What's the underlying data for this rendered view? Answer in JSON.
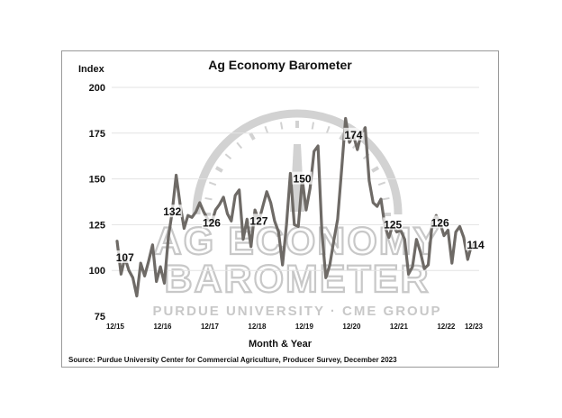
{
  "chart_data": {
    "type": "line",
    "title": "Ag Economy Barometer",
    "ylabel": "Index",
    "xlabel": "Month & Year",
    "ylim": [
      75,
      200
    ],
    "yticks": [
      75,
      100,
      125,
      150,
      175,
      200
    ],
    "xtick_labels": [
      "12/15",
      "12/16",
      "12/17",
      "12/18",
      "12/19",
      "12/20",
      "12/21",
      "12/22",
      "12/23"
    ],
    "grid": true,
    "series": [
      {
        "color": "#6e6a66",
        "values": [
          116,
          98,
          107,
          100,
          96,
          86,
          104,
          97,
          105,
          114,
          94,
          102,
          93,
          118,
          132,
          152,
          136,
          123,
          130,
          129,
          132,
          137,
          132,
          128,
          126,
          133,
          136,
          140,
          131,
          127,
          141,
          144,
          117,
          128,
          113,
          133,
          127,
          135,
          143,
          137,
          127,
          121,
          103,
          125,
          153,
          125,
          124,
          150,
          133,
          145,
          165,
          168,
          121,
          96,
          103,
          116,
          128,
          155,
          183,
          170,
          174,
          166,
          175,
          178,
          149,
          137,
          135,
          139,
          124,
          118,
          125,
          121,
          122,
          117,
          98,
          102,
          117,
          110,
          101,
          103,
          126,
          130,
          126,
          119,
          122,
          104,
          121,
          124,
          118,
          106,
          114,
          114
        ]
      }
    ],
    "annotations": [
      {
        "label": "107",
        "x_index": 2,
        "value": 107
      },
      {
        "label": "132",
        "x_index": 14,
        "value": 132
      },
      {
        "label": "126",
        "x_index": 24,
        "value": 126
      },
      {
        "label": "127",
        "x_index": 36,
        "value": 127
      },
      {
        "label": "150",
        "x_index": 47,
        "value": 150
      },
      {
        "label": "174",
        "x_index": 60,
        "value": 174
      },
      {
        "label": "125",
        "x_index": 70,
        "value": 125
      },
      {
        "label": "126",
        "x_index": 82,
        "value": 126
      },
      {
        "label": "114",
        "x_index": 91,
        "value": 114
      }
    ]
  },
  "watermark": {
    "line1": "AG ECONOMY",
    "line2": "BAROMETER",
    "line3": "PURDUE UNIVERSITY · CME GROUP",
    "color": "#c8c8c8"
  },
  "source": "Source: Purdue University Center for Commercial Agriculture, Producer Survey, December 2023"
}
